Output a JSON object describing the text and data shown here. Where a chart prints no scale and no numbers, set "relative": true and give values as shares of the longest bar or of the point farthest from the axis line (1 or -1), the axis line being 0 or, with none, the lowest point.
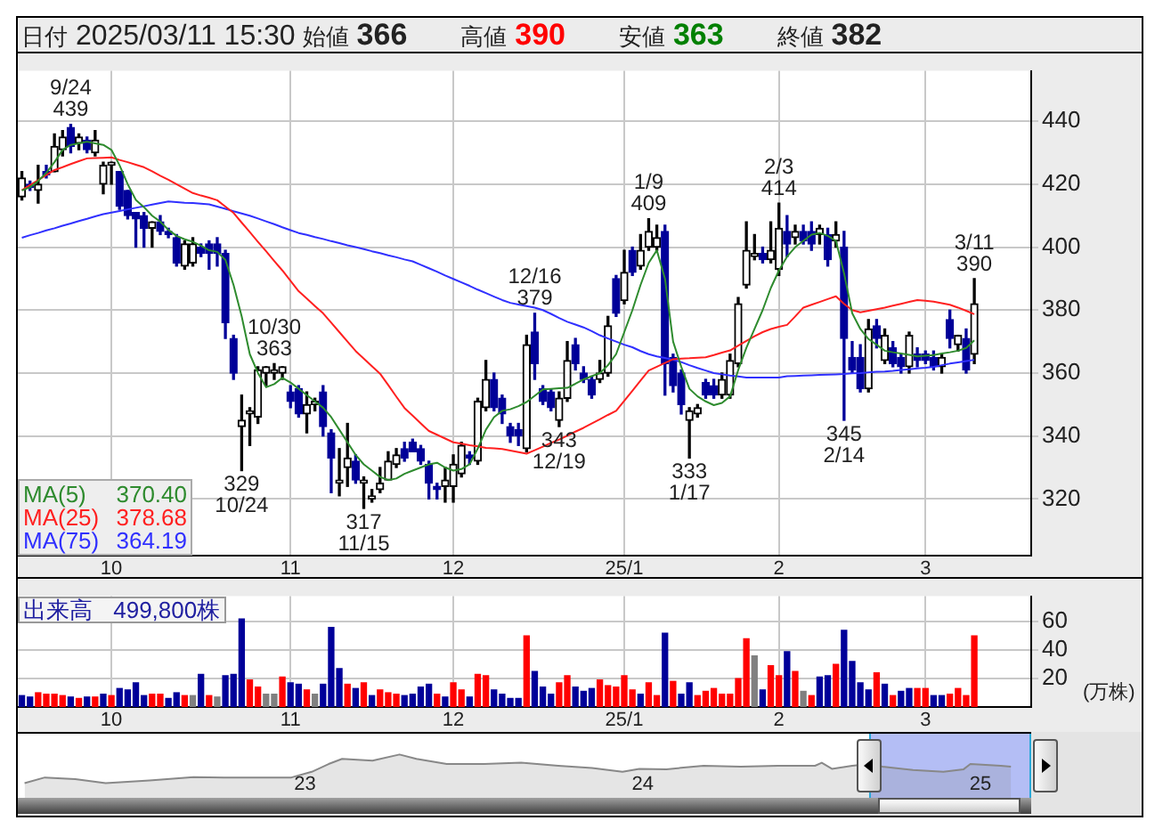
{
  "chart_data": [
    {
      "type": "candlestick",
      "title": "日付 2025/03/11 15:30",
      "categories": [
        null,
        null,
        null,
        null,
        null,
        null,
        null,
        null,
        null,
        null,
        null,
        "10",
        null,
        null,
        null,
        null,
        null,
        null,
        null,
        null,
        null,
        null,
        null,
        null,
        null,
        null,
        null,
        null,
        null,
        null,
        null,
        null,
        null,
        "11",
        null,
        null,
        null,
        null,
        null,
        null,
        null,
        null,
        null,
        null,
        null,
        null,
        null,
        null,
        null,
        null,
        null,
        null,
        null,
        "12",
        null,
        null,
        null,
        null,
        null,
        null,
        null,
        null,
        null,
        null,
        null,
        null,
        null,
        null,
        null,
        null,
        null,
        null,
        null,
        null,
        "25/1",
        null,
        null,
        null,
        null,
        null,
        null,
        null,
        null,
        null,
        null,
        null,
        null,
        null,
        null,
        null,
        null,
        null,
        null,
        "2",
        null,
        null,
        null,
        null,
        null,
        null,
        null,
        null,
        null,
        null,
        null,
        null,
        null,
        null,
        null,
        null,
        null,
        "3",
        null,
        null,
        null,
        null,
        null,
        null
      ],
      "ohlc": [
        [
          416,
          424,
          415,
          422
        ],
        [
          420,
          421,
          418,
          419
        ],
        [
          418,
          426,
          414,
          420
        ],
        [
          424,
          426,
          422,
          423
        ],
        [
          424,
          436,
          424,
          432
        ],
        [
          431,
          437,
          429,
          435
        ],
        [
          438,
          439,
          430,
          432
        ],
        [
          433,
          436,
          431,
          435
        ],
        [
          434,
          435,
          430,
          431
        ],
        [
          430,
          437,
          429,
          434
        ],
        [
          420,
          427,
          417,
          426
        ],
        [
          426,
          427,
          420,
          427
        ],
        [
          424,
          424,
          412,
          413
        ],
        [
          418,
          418,
          409,
          410
        ],
        [
          411,
          411,
          400,
          409
        ],
        [
          410,
          411,
          400,
          406
        ],
        [
          406,
          408,
          400,
          408
        ],
        [
          408,
          410,
          404,
          405
        ],
        [
          405,
          406,
          403,
          404
        ],
        [
          403,
          404,
          394,
          395
        ],
        [
          394,
          402,
          393,
          401
        ],
        [
          395,
          403,
          394,
          401
        ],
        [
          400,
          401,
          397,
          398
        ],
        [
          401,
          402,
          393,
          398
        ],
        [
          401,
          403,
          394,
          398
        ],
        [
          398,
          399,
          371,
          376
        ],
        [
          371,
          372,
          358,
          360
        ],
        [
          343,
          353,
          329,
          345
        ],
        [
          347,
          349,
          337,
          348
        ],
        [
          346,
          362,
          344,
          361
        ],
        [
          360,
          362,
          356,
          362
        ],
        [
          360,
          363,
          358,
          361
        ],
        [
          360,
          362,
          358,
          362
        ],
        [
          354,
          356,
          349,
          351
        ],
        [
          355,
          356,
          346,
          347
        ],
        [
          347,
          354,
          341,
          350
        ],
        [
          350,
          352,
          348,
          351
        ],
        [
          354,
          356,
          340,
          343
        ],
        [
          341,
          342,
          322,
          333
        ],
        [
          325,
          336,
          321,
          326
        ],
        [
          330,
          344,
          324,
          333
        ],
        [
          332,
          334,
          325,
          326
        ],
        [
          325,
          327,
          317,
          326
        ],
        [
          320,
          323,
          319,
          321
        ],
        [
          323,
          330,
          322,
          325
        ],
        [
          326,
          335,
          326,
          332
        ],
        [
          331,
          336,
          330,
          334
        ],
        [
          336,
          338,
          332,
          333
        ],
        [
          338,
          339,
          335,
          335
        ],
        [
          336,
          337,
          331,
          332
        ],
        [
          331,
          332,
          320,
          325
        ],
        [
          324,
          325,
          320,
          323
        ],
        [
          324,
          330,
          319,
          326
        ],
        [
          324,
          334,
          319,
          331
        ],
        [
          328,
          338,
          327,
          337
        ],
        [
          334,
          335,
          331,
          333
        ],
        [
          332,
          352,
          331,
          351
        ],
        [
          349,
          364,
          348,
          358
        ],
        [
          358,
          360,
          348,
          349
        ],
        [
          352,
          353,
          344,
          347
        ],
        [
          343,
          344,
          338,
          340
        ],
        [
          342,
          344,
          337,
          340
        ],
        [
          336,
          372,
          335,
          369
        ],
        [
          373,
          379,
          358,
          363
        ],
        [
          355,
          356,
          350,
          351
        ],
        [
          354,
          355,
          348,
          349
        ],
        [
          345,
          354,
          343,
          352
        ],
        [
          352,
          370,
          351,
          364
        ],
        [
          369,
          371,
          361,
          363
        ],
        [
          360,
          362,
          357,
          358
        ],
        [
          358,
          359,
          352,
          353
        ],
        [
          358,
          364,
          357,
          360
        ],
        [
          360,
          378,
          359,
          375
        ],
        [
          390,
          391,
          378,
          379
        ],
        [
          383,
          399,
          382,
          392
        ],
        [
          399,
          400,
          391,
          392
        ],
        [
          394,
          404,
          393,
          399
        ],
        [
          400,
          409,
          399,
          405
        ],
        [
          400,
          407,
          399,
          403
        ],
        [
          405,
          407,
          353,
          363
        ],
        [
          365,
          366,
          354,
          356
        ],
        [
          360,
          361,
          347,
          350
        ],
        [
          345,
          349,
          333,
          348
        ],
        [
          347,
          350,
          346,
          349
        ],
        [
          357,
          358,
          352,
          353
        ],
        [
          356,
          358,
          352,
          353
        ],
        [
          353,
          360,
          352,
          358
        ],
        [
          353,
          366,
          352,
          364
        ],
        [
          363,
          384,
          362,
          382
        ],
        [
          388,
          408,
          387,
          399
        ],
        [
          397,
          404,
          396,
          398
        ],
        [
          398,
          400,
          395,
          396
        ],
        [
          396,
          408,
          395,
          399
        ],
        [
          393,
          414,
          391,
          406
        ],
        [
          405,
          410,
          397,
          401
        ],
        [
          403,
          407,
          401,
          405
        ],
        [
          405,
          407,
          401,
          402
        ],
        [
          405,
          408,
          399,
          401
        ],
        [
          404,
          407,
          401,
          406
        ],
        [
          404,
          406,
          394,
          396
        ],
        [
          402,
          408,
          400,
          404
        ],
        [
          400,
          405,
          345,
          371
        ],
        [
          365,
          370,
          360,
          361
        ],
        [
          365,
          369,
          354,
          355
        ],
        [
          355,
          377,
          354,
          374
        ],
        [
          375,
          377,
          368,
          371
        ],
        [
          364,
          374,
          363,
          372
        ],
        [
          368,
          370,
          362,
          363
        ],
        [
          365,
          366,
          360,
          362
        ],
        [
          362,
          373,
          360,
          372
        ],
        [
          366,
          368,
          362,
          364
        ],
        [
          366,
          367,
          363,
          364
        ],
        [
          365,
          367,
          361,
          362
        ],
        [
          362,
          366,
          360,
          365
        ],
        [
          377,
          380,
          368,
          371
        ],
        [
          369,
          372,
          367,
          372
        ],
        [
          371,
          374,
          360,
          361
        ],
        [
          366,
          390,
          363,
          382
        ]
      ],
      "colors": [
        "#000000",
        "#000099",
        "#000000",
        "#000099",
        "#000000",
        "#000000",
        "#000099",
        "#000000",
        "#000099",
        "#000000",
        "#000000",
        "#000000",
        "#000099",
        "#000099",
        "#000099",
        "#000099",
        "#000000",
        "#000099",
        "#000099",
        "#000099",
        "#000000",
        "#000000",
        "#000099",
        "#000099",
        "#000099",
        "#000099",
        "#000099",
        "#000000",
        "#000000",
        "#000000",
        "#000000",
        "#000000",
        "#000000",
        "#000099",
        "#000099",
        "#000000",
        "#000000",
        "#000099",
        "#000099",
        "#000000",
        "#000000",
        "#000099",
        "#000000",
        "#000000",
        "#000000",
        "#000000",
        "#000000",
        "#000099",
        "#000099",
        "#000099",
        "#000099",
        "#000099",
        "#000000",
        "#000000",
        "#000000",
        "#000099",
        "#000000",
        "#000000",
        "#000099",
        "#000099",
        "#000099",
        "#000099",
        "#000000",
        "#000099",
        "#000099",
        "#000099",
        "#000000",
        "#000000",
        "#000099",
        "#000099",
        "#000099",
        "#000000",
        "#000000",
        "#000099",
        "#000000",
        "#000099",
        "#000000",
        "#000000",
        "#000000",
        "#000099",
        "#000099",
        "#000099",
        "#000000",
        "#000000",
        "#000099",
        "#000099",
        "#000000",
        "#000000",
        "#000000",
        "#000000",
        "#000000",
        "#000099",
        "#000000",
        "#000000",
        "#000099",
        "#000000",
        "#000099",
        "#000099",
        "#000000",
        "#000099",
        "#000000",
        "#000099",
        "#000099",
        "#000099",
        "#000000",
        "#000099",
        "#000000",
        "#000099",
        "#000099",
        "#000000",
        "#000099",
        "#000099",
        "#000099",
        "#000000",
        "#000099",
        "#000000",
        "#000099",
        "#000000"
      ],
      "series": [
        {
          "type": "line",
          "name": "MA(5) 370.40",
          "color": "#2e8b2e",
          "values": [
            418,
            419,
            421,
            423.6,
            427,
            430.9,
            432.5,
            433,
            433.5,
            433,
            432.5,
            430.9,
            426,
            420,
            415,
            412.7,
            410,
            408.1,
            405.5,
            403.6,
            402.5,
            401.7,
            400.5,
            399,
            398.5,
            396,
            388,
            378,
            366,
            360,
            355.5,
            356.5,
            358.5,
            357,
            355,
            353,
            351,
            349,
            346,
            342,
            338,
            334,
            331,
            329,
            327,
            326,
            326.5,
            328,
            329,
            330,
            331,
            331.5,
            330,
            329,
            329.5,
            331,
            336,
            342,
            346,
            348,
            348.5,
            349.5,
            350.8,
            352.8,
            354.8,
            355,
            355.2,
            355.3,
            356.6,
            358,
            359,
            360,
            362.5,
            366,
            373,
            380,
            388,
            395,
            399,
            390,
            370,
            362,
            355,
            352.6,
            351,
            349.8,
            350.5,
            352.6,
            361,
            368,
            374,
            380,
            387,
            392.6,
            397,
            400,
            402,
            404,
            404.5,
            403.6,
            402,
            391.7,
            379,
            374,
            370.8,
            369,
            367.1,
            366.6,
            366.2,
            365.8,
            365.3,
            365.5,
            365.7,
            366.2,
            366.6,
            367.1,
            368,
            370.4
          ]
        },
        {
          "type": "line",
          "name": "MA(25) 378.68",
          "color": "#ff2020",
          "values": [
            418.1,
            419.7,
            421.3,
            422.9,
            424.5,
            425.4,
            426.4,
            427.3,
            428.2,
            428.3,
            428.4,
            428.5,
            427.7,
            427,
            426.2,
            425.4,
            424.1,
            422.7,
            421.4,
            420,
            418.6,
            417.2,
            416.4,
            415.7,
            414.9,
            412.9,
            410.9,
            407.8,
            404.8,
            401.7,
            398.7,
            395.6,
            392.6,
            389.3,
            386,
            383.7,
            381.3,
            379,
            376,
            373,
            370,
            367,
            364.6,
            362.2,
            359.8,
            356.2,
            352.5,
            348.9,
            346.5,
            344,
            341.6,
            340.4,
            339.2,
            338,
            337.6,
            337.1,
            336.7,
            336.2,
            336.1,
            335.9,
            335.4,
            334.9,
            334.4,
            335.5,
            336.6,
            337.8,
            338.9,
            340.1,
            341.4,
            342.6,
            344,
            345.3,
            346.7,
            348,
            351.2,
            354.4,
            357.6,
            360.8,
            362,
            363.2,
            364.4,
            364.6,
            364.7,
            364.9,
            365,
            365.7,
            366.5,
            367.2,
            368.7,
            370.2,
            371.7,
            373,
            374,
            374.7,
            375.3,
            378,
            380.8,
            381.7,
            382.6,
            383.5,
            384.4,
            382,
            380,
            379.3,
            379.8,
            380.3,
            380.8,
            381.4,
            382,
            382.6,
            383.2,
            383,
            382.7,
            382.2,
            381.7,
            380.8,
            379.8,
            378.7
          ]
        },
        {
          "type": "line",
          "name": "MA(75) 364.19",
          "color": "#3030ff",
          "values": [
            403,
            403.8,
            404.5,
            405.3,
            406,
            406.8,
            407.5,
            408.3,
            409,
            409.8,
            410.5,
            411,
            411.5,
            412,
            412.5,
            413,
            413.5,
            414,
            414.5,
            414.3,
            414.1,
            414,
            413.8,
            413.6,
            412.9,
            412.2,
            411.4,
            410.7,
            410,
            409.1,
            408.2,
            407.3,
            406.3,
            405.4,
            404.5,
            403.9,
            403.2,
            402.6,
            401.9,
            401.3,
            400.6,
            400,
            399.4,
            398.7,
            398.1,
            397.4,
            396.8,
            396.1,
            395.5,
            394.4,
            393.3,
            392.2,
            391,
            389.9,
            388.8,
            387.7,
            386.5,
            385.4,
            384.3,
            383.2,
            382.3,
            381.8,
            381.3,
            380.8,
            380,
            378.8,
            377.5,
            376.3,
            375.4,
            374.5,
            373.3,
            372,
            371,
            370,
            369,
            368.2,
            367,
            366,
            365.3,
            364.8,
            364.2,
            363.5,
            362.5,
            361.6,
            360.8,
            360,
            359.6,
            359.2,
            358.9,
            358.6,
            358.6,
            358.6,
            358.6,
            358.6,
            359,
            359.1,
            359.2,
            359.3,
            359.4,
            359.5,
            359.6,
            359.7,
            359.9,
            360,
            360.2,
            360.4,
            360.5,
            360.7,
            361,
            361.2,
            361.5,
            361.7,
            362,
            362.5,
            363,
            363.4,
            363.8,
            364.2
          ]
        }
      ],
      "ylim": [
        302,
        456
      ],
      "yticks": [
        320,
        340,
        360,
        380,
        400,
        420,
        440
      ],
      "grid": true,
      "legend": "bottom left",
      "annotations": [
        "始値 366",
        "高値 390",
        "安値 363",
        "終値 382",
        {
          "text": "9/24\n439",
          "y": 439
        },
        {
          "text": "329\n10/24",
          "y": 329
        },
        {
          "text": "10/30\n363",
          "y": 363
        },
        {
          "text": "317\n11/15",
          "y": 317
        },
        {
          "text": "12/16\n379",
          "y": 379
        },
        {
          "text": "343\n12/19",
          "y": 343
        },
        {
          "text": "1/9\n409",
          "y": 409
        },
        {
          "text": "333\n1/17",
          "y": 333
        },
        {
          "text": "2/3\n414",
          "y": 414
        },
        {
          "text": "345\n2/14",
          "y": 345
        },
        {
          "text": "3/11\n390",
          "y": 390
        }
      ]
    },
    {
      "type": "bar",
      "title": "出来高 499,800株",
      "ylabel": "(万株)",
      "categories": [
        null,
        null,
        null,
        null,
        null,
        null,
        null,
        null,
        null,
        null,
        null,
        "10",
        null,
        null,
        null,
        null,
        null,
        null,
        null,
        null,
        null,
        null,
        null,
        null,
        null,
        null,
        null,
        null,
        null,
        null,
        null,
        null,
        null,
        "11",
        null,
        null,
        null,
        null,
        null,
        null,
        null,
        null,
        null,
        null,
        null,
        null,
        null,
        null,
        null,
        null,
        null,
        null,
        null,
        "12",
        null,
        null,
        null,
        null,
        null,
        null,
        null,
        null,
        null,
        null,
        null,
        null,
        null,
        null,
        null,
        null,
        null,
        null,
        null,
        null,
        "25/1",
        null,
        null,
        null,
        null,
        null,
        null,
        null,
        null,
        null,
        null,
        null,
        null,
        null,
        null,
        null,
        null,
        null,
        null,
        "2",
        null,
        null,
        null,
        null,
        null,
        null,
        null,
        null,
        null,
        null,
        null,
        null,
        null,
        null,
        null,
        null,
        null,
        "3",
        null,
        null,
        null,
        null,
        null,
        null
      ],
      "values": [
        8,
        7,
        10,
        9,
        9,
        8,
        7,
        6,
        7,
        7,
        9,
        8,
        13,
        12,
        17,
        8,
        9,
        9,
        6,
        10,
        8,
        8,
        23,
        8,
        7,
        22,
        23,
        62,
        19,
        14,
        9,
        9,
        21,
        17,
        16,
        12,
        9,
        16,
        56,
        27,
        16,
        13,
        17,
        8,
        12,
        10,
        9,
        8,
        9,
        14,
        16,
        9,
        7,
        17,
        12,
        7,
        23,
        22,
        12,
        9,
        6,
        6,
        50,
        25,
        14,
        9,
        17,
        22,
        14,
        11,
        13,
        19,
        15,
        14,
        22,
        12,
        9,
        17,
        8,
        52,
        18,
        9,
        17,
        8,
        11,
        13,
        9,
        9,
        20,
        48,
        36,
        12,
        29,
        22,
        39,
        25,
        11,
        8,
        21,
        22,
        30,
        54,
        32,
        17,
        12,
        24,
        16,
        8,
        11,
        13,
        13,
        13,
        8,
        8,
        9,
        13,
        8,
        50
      ],
      "colors": [
        "#000099",
        "#000099",
        "#ff0000",
        "#ff0000",
        "#ff0000",
        "#ff0000",
        "#000099",
        "#ff0000",
        "#000099",
        "#ff0000",
        "#000099",
        "#ff0000",
        "#000099",
        "#000099",
        "#000099",
        "#000099",
        "#ff0000",
        "#ff0000",
        "#000099",
        "#000099",
        "#ff0000",
        "#808080",
        "#000099",
        "#ff0000",
        "#808080",
        "#000099",
        "#000099",
        "#000099",
        "#ff0000",
        "#ff0000",
        "#808080",
        "#808080",
        "#ff0000",
        "#000099",
        "#000099",
        "#ff0000",
        "#808080",
        "#000099",
        "#000099",
        "#000099",
        "#ff0000",
        "#000099",
        "#ff0000",
        "#000099",
        "#ff0000",
        "#ff0000",
        "#ff0000",
        "#000099",
        "#000099",
        "#000099",
        "#000099",
        "#ff0000",
        "#000099",
        "#ff0000",
        "#ff0000",
        "#000099",
        "#ff0000",
        "#ff0000",
        "#000099",
        "#000099",
        "#000099",
        "#000099",
        "#ff0000",
        "#000099",
        "#000099",
        "#000099",
        "#ff0000",
        "#ff0000",
        "#000099",
        "#000099",
        "#000099",
        "#ff0000",
        "#ff0000",
        "#ff0000",
        "#ff0000",
        "#ff0000",
        "#000099",
        "#ff0000",
        "#ff0000",
        "#000099",
        "#ff0000",
        "#000099",
        "#000099",
        "#ff0000",
        "#ff0000",
        "#ff0000",
        "#ff0000",
        "#ff0000",
        "#ff0000",
        "#ff0000",
        "#808080",
        "#000099",
        "#ff0000",
        "#ff0000",
        "#000099",
        "#ff0000",
        "#808080",
        "#ff0000",
        "#000099",
        "#000099",
        "#ff0000",
        "#000099",
        "#000099",
        "#000099",
        "#000099",
        "#ff0000",
        "#000099",
        "#ff0000",
        "#000099",
        "#000099",
        "#ff0000",
        "#ff0000",
        "#000099",
        "#000099",
        "#ff0000",
        "#ff0000",
        "#ff0000",
        "#ff0000"
      ],
      "ylim": [
        0,
        78
      ],
      "yticks": [
        20,
        40,
        60
      ],
      "grid": true
    },
    {
      "type": "area",
      "relative": true,
      "color": "#888888",
      "x": [
        2022.17,
        2022.23,
        2022.32,
        2022.41,
        2022.54,
        2022.67,
        2022.76,
        2022.96,
        2023.02,
        2023.07,
        2023.11,
        2023.2,
        2023.28,
        2023.33,
        2023.42,
        2023.53,
        2023.64,
        2023.75,
        2023.85,
        2023.94,
        2023.99,
        2024.07,
        2024.18,
        2024.29,
        2024.4,
        2024.51,
        2024.53,
        2024.56,
        2024.62,
        2024.67,
        2024.71,
        2024.8,
        2024.89,
        2024.95,
        2024.97,
        2025.06,
        2025.09
      ],
      "values": [
        0.34,
        0.47,
        0.43,
        0.34,
        0.4,
        0.48,
        0.47,
        0.47,
        0.6,
        0.78,
        0.9,
        0.86,
        1,
        0.9,
        0.78,
        0.78,
        0.81,
        0.74,
        0.69,
        0.6,
        0.67,
        0.66,
        0.74,
        0.72,
        0.74,
        0.74,
        0.81,
        0.67,
        0.74,
        0.78,
        0.72,
        0.64,
        0.6,
        0.66,
        0.78,
        0.74,
        0.72
      ],
      "xlim": [
        2022.15,
        2025.15
      ],
      "xticks": [
        {
          "value": 2023,
          "label": "23"
        },
        {
          "value": 2024,
          "label": "24"
        },
        {
          "value": 2025,
          "label": "25"
        }
      ],
      "bands": [
        {
          "axis": "x",
          "from": 2024.67,
          "to": 2025.15,
          "color": "#b4bef5"
        }
      ],
      "ref_lines": [
        {
          "axis": "x",
          "value": 2024.67,
          "color": "#2aa8d8"
        },
        {
          "axis": "x",
          "value": 2025.15,
          "color": "#2aa8d8"
        }
      ]
    }
  ]
}
